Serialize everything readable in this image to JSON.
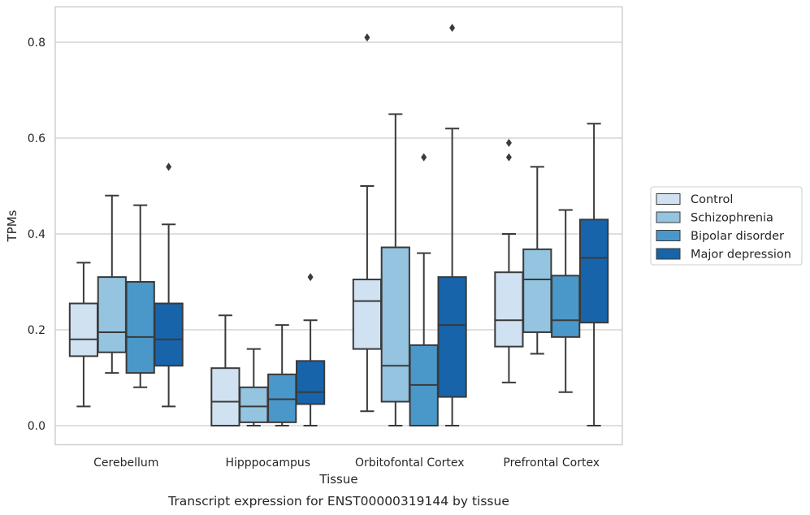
{
  "chart_data": {
    "type": "box",
    "title": "",
    "caption": "Transcript expression for ENST00000319144 by tissue",
    "xlabel": "Tissue",
    "ylabel": "TPMs",
    "ylim": [
      -0.04,
      0.875
    ],
    "yticks": [
      0.0,
      0.2,
      0.4,
      0.6,
      0.8
    ],
    "ytick_labels": [
      "0.0",
      "0.2",
      "0.4",
      "0.6",
      "0.8"
    ],
    "grid": "horizontal",
    "legend_position": "right",
    "categories": [
      "Cerebellum",
      "Hipppocampus",
      "Orbitofontal Cortex",
      "Prefrontal Cortex"
    ],
    "series": [
      {
        "name": "Control",
        "color": "#d0e1f2",
        "boxes": [
          {
            "whislo": 0.04,
            "q1": 0.145,
            "med": 0.18,
            "q3": 0.255,
            "whishi": 0.34,
            "fliers": []
          },
          {
            "whislo": 0.0,
            "q1": 0.0,
            "med": 0.05,
            "q3": 0.12,
            "whishi": 0.23,
            "fliers": []
          },
          {
            "whislo": 0.03,
            "q1": 0.16,
            "med": 0.26,
            "q3": 0.305,
            "whishi": 0.5,
            "fliers": [
              0.81
            ]
          },
          {
            "whislo": 0.09,
            "q1": 0.165,
            "med": 0.22,
            "q3": 0.32,
            "whishi": 0.4,
            "fliers": [
              0.56,
              0.59
            ]
          }
        ]
      },
      {
        "name": "Schizophrenia",
        "color": "#94c4df",
        "boxes": [
          {
            "whislo": 0.11,
            "q1": 0.153,
            "med": 0.195,
            "q3": 0.31,
            "whishi": 0.48,
            "fliers": []
          },
          {
            "whislo": 0.0,
            "q1": 0.007,
            "med": 0.04,
            "q3": 0.08,
            "whishi": 0.16,
            "fliers": []
          },
          {
            "whislo": 0.0,
            "q1": 0.05,
            "med": 0.125,
            "q3": 0.372,
            "whishi": 0.65,
            "fliers": []
          },
          {
            "whislo": 0.15,
            "q1": 0.195,
            "med": 0.305,
            "q3": 0.368,
            "whishi": 0.54,
            "fliers": []
          }
        ]
      },
      {
        "name": "Bipolar disorder",
        "color": "#4a98c9",
        "boxes": [
          {
            "whislo": 0.08,
            "q1": 0.11,
            "med": 0.185,
            "q3": 0.3,
            "whishi": 0.46,
            "fliers": []
          },
          {
            "whislo": 0.0,
            "q1": 0.007,
            "med": 0.055,
            "q3": 0.107,
            "whishi": 0.21,
            "fliers": []
          },
          {
            "whislo": 0.0,
            "q1": 0.0,
            "med": 0.085,
            "q3": 0.168,
            "whishi": 0.36,
            "fliers": [
              0.56
            ]
          },
          {
            "whislo": 0.07,
            "q1": 0.185,
            "med": 0.22,
            "q3": 0.313,
            "whishi": 0.45,
            "fliers": []
          }
        ]
      },
      {
        "name": "Major depression",
        "color": "#1764ab",
        "boxes": [
          {
            "whislo": 0.04,
            "q1": 0.125,
            "med": 0.18,
            "q3": 0.255,
            "whishi": 0.42,
            "fliers": [
              0.54
            ]
          },
          {
            "whislo": 0.0,
            "q1": 0.045,
            "med": 0.07,
            "q3": 0.135,
            "whishi": 0.22,
            "fliers": [
              0.31
            ]
          },
          {
            "whislo": 0.0,
            "q1": 0.06,
            "med": 0.21,
            "q3": 0.31,
            "whishi": 0.62,
            "fliers": [
              0.83
            ]
          },
          {
            "whislo": 0.0,
            "q1": 0.215,
            "med": 0.35,
            "q3": 0.43,
            "whishi": 0.63,
            "fliers": []
          }
        ]
      }
    ]
  }
}
